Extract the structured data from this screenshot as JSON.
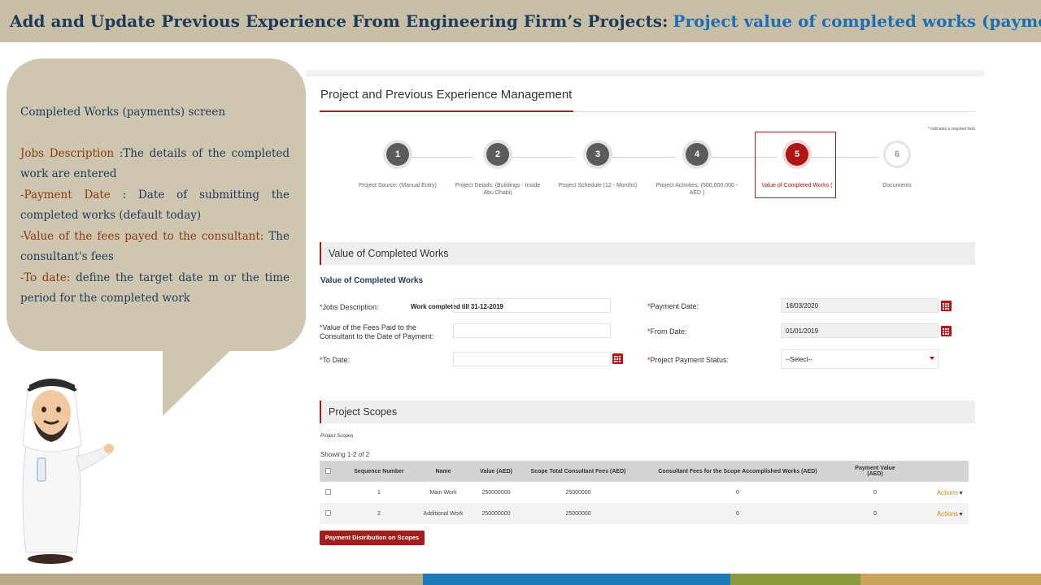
{
  "slide": {
    "title_part1": "Add and Update Previous Experience From Engineering Firm’s Projects:",
    "title_part2": "Project value of completed works (payment)",
    "bottom_bar_colors": [
      "#b7ab8a",
      "#1d7ab8",
      "#8a9a3c",
      "#c9a45a"
    ]
  },
  "bubble": {
    "heading": "Completed Works (payments) screen",
    "items": [
      {
        "key": "Jobs Description",
        "text": " :The details of the completed work are entered"
      },
      {
        "key": "-Payment Date",
        "text": "  : Date of submitting the completed works (default today)"
      },
      {
        "key": "-Value of the fees payed to the consultant:",
        "text": " The consultant's fees"
      },
      {
        "key": "-To date:",
        "text": " define the target date m or the time period for the completed work"
      }
    ]
  },
  "app": {
    "title": "Project and Previous Experience Management",
    "required_note": "* Indicates a required field.",
    "steps": [
      {
        "number": "1",
        "label": "Project Source: (Manual Entry)",
        "state": "done"
      },
      {
        "number": "2",
        "label": "Project Details: (Buildings - Inside Abu Dhabi)",
        "state": "done"
      },
      {
        "number": "3",
        "label": "Project Schedule (12 - Months)",
        "state": "done"
      },
      {
        "number": "4",
        "label": "Project Activities: (500,000,000 - AED )",
        "state": "done"
      },
      {
        "number": "5",
        "label": "Value of Completed Works (",
        "state": "active"
      },
      {
        "number": "6",
        "label": "Documents",
        "state": "pending"
      }
    ],
    "vcw_section": "Value of Completed Works",
    "vcw_subtitle": "Value of Completed Works",
    "form": {
      "jobs_label": "Jobs Description:",
      "jobs_value": "Work completed till 31-12-2019",
      "fees_label": "Value of the Fees Paid to the Consultant to the Date of Payment:",
      "fees_value": "",
      "to_date_label": "To Date:",
      "to_date_value": "",
      "payment_date_label": "Payment Date:",
      "payment_date_value": "18/03/2020",
      "from_date_label": "From Date:",
      "from_date_value": "01/01/2019",
      "status_label": "Project Payment Status:",
      "status_value": "--Select--"
    },
    "scopes_section": "Project Scopes",
    "scopes_caption": "Project Scopes",
    "showing": "Showing 1-2 of 2",
    "table": {
      "headers": [
        "",
        "Sequence Number",
        "Name",
        "Value (AED)",
        "Scope Total Consultant Fees (AED)",
        "Consultant Fees for the Scope Accomplished Works (AED)",
        "Payment Value (AED)",
        ""
      ],
      "rows": [
        {
          "seq": "1",
          "name": "Main Work",
          "value": "250000000",
          "total_fees": "25000000",
          "accomplished_fees": "0",
          "payment": "0",
          "action": "Actions"
        },
        {
          "seq": "2",
          "name": "Additional Work",
          "value": "250000000",
          "total_fees": "25000000",
          "accomplished_fees": "0",
          "payment": "0",
          "action": "Actions"
        }
      ]
    },
    "pay_dist_button": "Payment Distribution on Scopes"
  }
}
